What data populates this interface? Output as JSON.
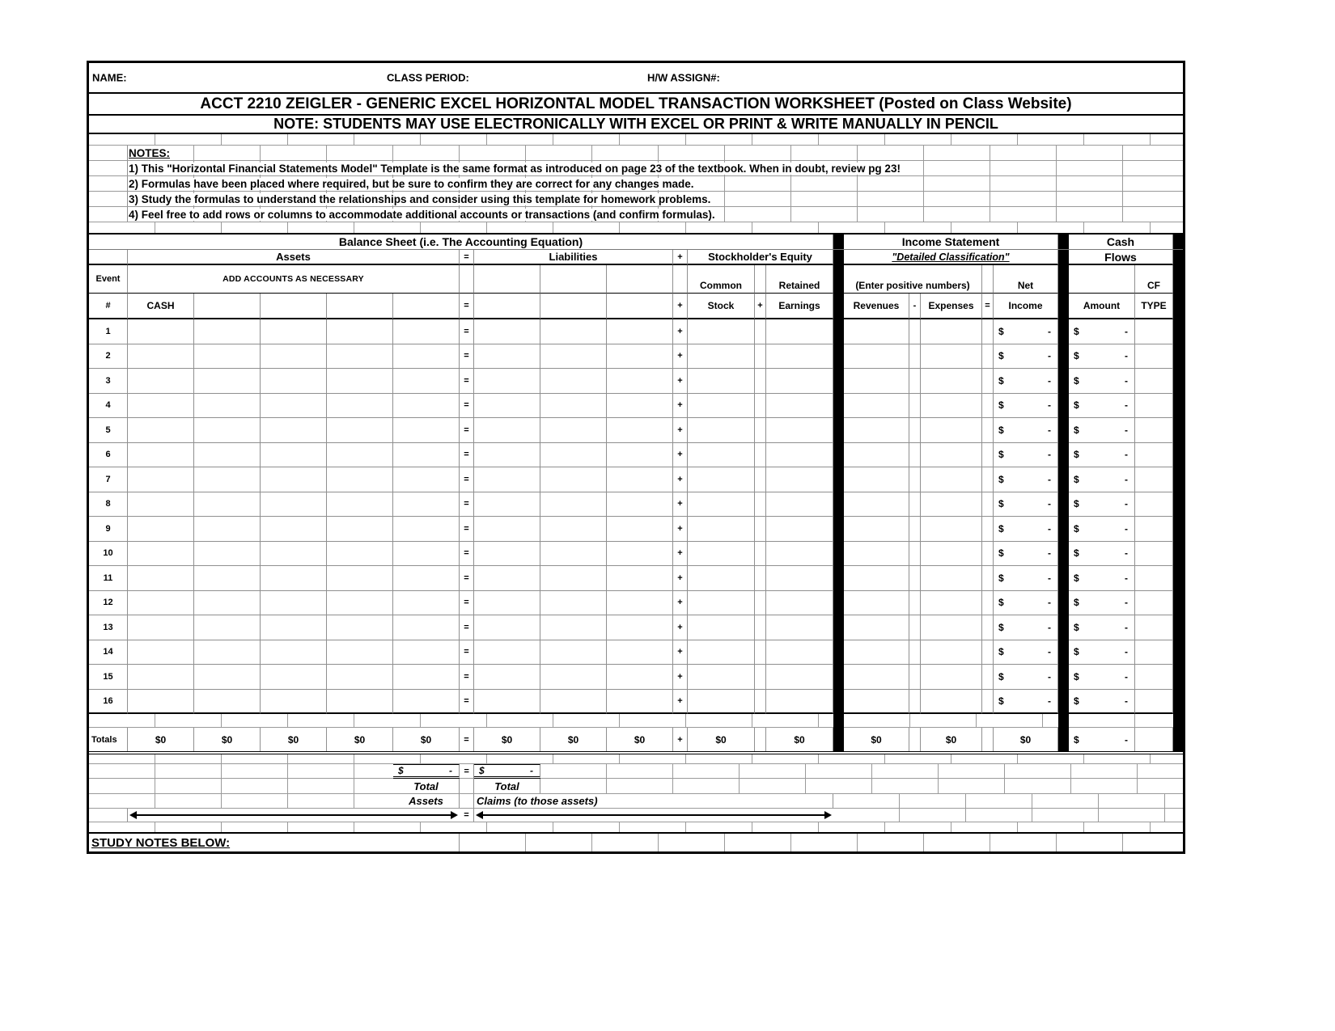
{
  "header": {
    "name_label": "NAME:",
    "class_period_label": "CLASS PERIOD:",
    "hw_assign_label": "H/W ASSIGN#:",
    "title_line1": "ACCT 2210 ZEIGLER - GENERIC EXCEL HORIZONTAL MODEL TRANSACTION WORKSHEET (Posted on Class Website)",
    "title_line2": "NOTE: STUDENTS MAY USE ELECTRONICALLY WITH EXCEL OR PRINT & WRITE MANUALLY IN PENCIL"
  },
  "notes": {
    "heading": "NOTES:",
    "items": [
      "1) This \"Horizontal Financial Statements Model\" Template is the same format as introduced on page 23 of the textbook. When in doubt, review pg 23!",
      "2) Formulas have been placed where required, but be sure to confirm they are correct for any changes made.",
      "3) Study the formulas to understand the relationships and consider using this template for homework problems.",
      "4) Feel free to add rows or columns to accommodate additional accounts or transactions (and confirm formulas)."
    ]
  },
  "sections": {
    "balance_sheet": "Balance Sheet (i.e. The Accounting Equation)",
    "income_statement": "Income Statement",
    "income_statement_sub": "\"Detailed Classification\"",
    "cash_flows_line1": "Cash",
    "cash_flows_line2": "Flows"
  },
  "columns": {
    "assets": "Assets",
    "liabilities": "Liabilities",
    "stockholders_equity": "Stockholder's Equity",
    "event": "Event",
    "event_hash": "#",
    "add_accounts": "ADD ACCOUNTS AS NECESSARY",
    "cash": "CASH",
    "common": "Common",
    "stock": "Stock",
    "retained": "Retained",
    "earnings": "Earnings",
    "enter_positive": "(Enter positive numbers)",
    "net": "Net",
    "income": "Income",
    "revenues": "Revenues",
    "expenses": "Expenses",
    "amount": "Amount",
    "cf": "CF",
    "type": "TYPE"
  },
  "symbols": {
    "equals": "=",
    "plus": "+",
    "minus": "-",
    "dollar": "$",
    "dash": "-"
  },
  "body": {
    "row_numbers": [
      "1",
      "2",
      "3",
      "4",
      "5",
      "6",
      "7",
      "8",
      "9",
      "10",
      "11",
      "12",
      "13",
      "14",
      "15",
      "16"
    ]
  },
  "totals": {
    "label": "Totals",
    "zero": "$0"
  },
  "footer": {
    "total_assets_line1": "Total",
    "total_assets_line2": "Assets",
    "total_claims_line1": "Total",
    "total_claims_line2": "Claims (to those assets)",
    "study_notes": "STUDY NOTES BELOW:"
  }
}
